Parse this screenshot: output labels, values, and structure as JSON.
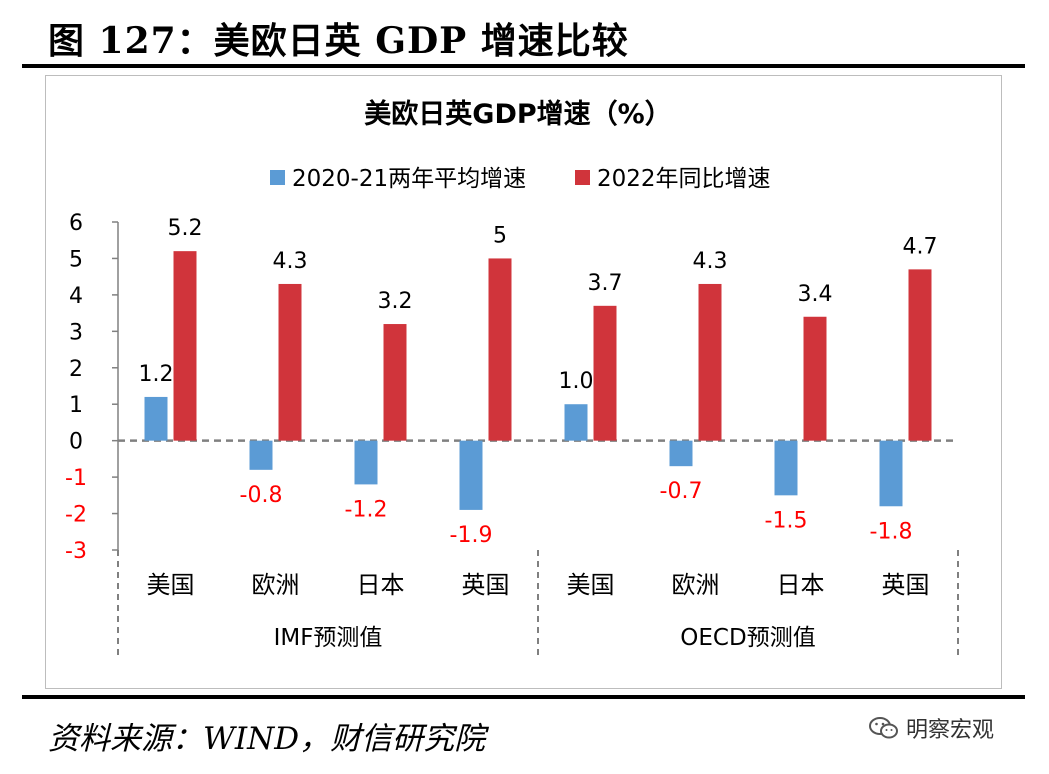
{
  "figure_title": "图 127：美欧日英 GDP 增速比较",
  "source": "资料来源：WIND，财信研究院",
  "watermark": "明察宏观",
  "colors": {
    "series1": "#5b9bd5",
    "series2": "#d0343b",
    "negative_label": "#ff0000",
    "axis": "#808080"
  },
  "chart_data": {
    "type": "bar",
    "title": "美欧日英GDP增速（%）",
    "categories": [
      "美国",
      "欧洲",
      "日本",
      "英国",
      "美国",
      "欧洲",
      "日本",
      "英国"
    ],
    "groups": [
      {
        "label": "IMF预测值",
        "count": 4
      },
      {
        "label": "OECD预测值",
        "count": 4
      }
    ],
    "series": [
      {
        "name": "2020-21两年平均增速",
        "values": [
          1.2,
          -0.8,
          -1.2,
          -1.9,
          1.0,
          -0.7,
          -1.5,
          -1.8
        ],
        "labels": [
          "1.2",
          "-0.8",
          "-1.2",
          "-1.9",
          "1.0",
          "-0.7",
          "-1.5",
          "-1.8"
        ]
      },
      {
        "name": "2022年同比增速",
        "values": [
          5.2,
          4.3,
          3.2,
          5.0,
          3.7,
          4.3,
          3.4,
          4.7
        ],
        "labels": [
          "5.2",
          "4.3",
          "3.2",
          "5",
          "3.7",
          "4.3",
          "3.4",
          "4.7"
        ]
      }
    ],
    "ylim": [
      -3,
      6
    ],
    "yticks": [
      "6",
      "5",
      "4",
      "3",
      "2",
      "1",
      "0",
      "-1",
      "-2",
      "-3"
    ],
    "legend_position": "top",
    "grid": false
  }
}
